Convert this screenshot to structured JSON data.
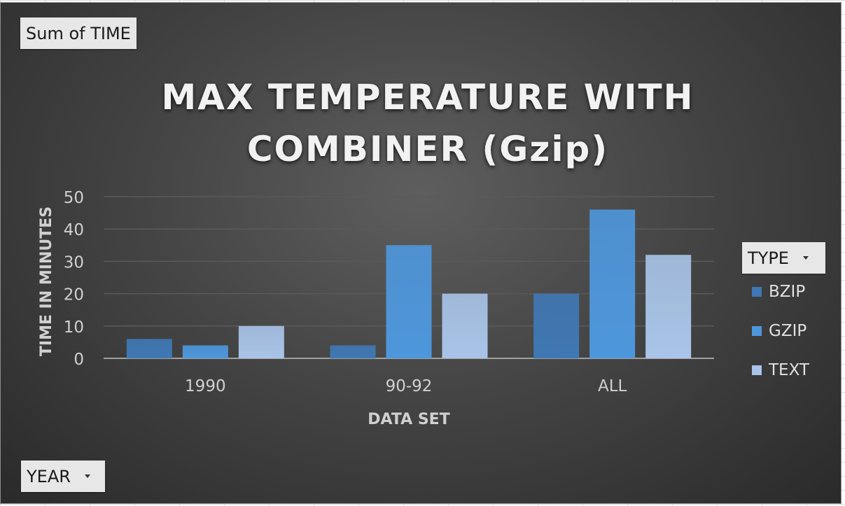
{
  "fields": {
    "values_field": "Sum of TIME",
    "legend_field": "TYPE",
    "axis_field": "YEAR"
  },
  "colors": {
    "BZIP": "#3f78b4",
    "GZIP": "#4e97dc",
    "TEXT": "#a9c4e8"
  },
  "chart_data": {
    "type": "bar",
    "title": "MAX TEMPERATURE WITH COMBINER (Gzip)",
    "title_lines": [
      "MAX TEMPERATURE WITH",
      "COMBINER (Gzip)"
    ],
    "xlabel": "DATA SET",
    "ylabel": "TIME IN MINUTES",
    "categories": [
      "1990",
      "90-92",
      "ALL"
    ],
    "ylim": [
      0,
      50
    ],
    "yticks": [
      0,
      10,
      20,
      30,
      40,
      50
    ],
    "grid": true,
    "legend_position": "right",
    "series": [
      {
        "name": "BZIP",
        "values": [
          6,
          4,
          20
        ]
      },
      {
        "name": "GZIP",
        "values": [
          4,
          35,
          46
        ]
      },
      {
        "name": "TEXT",
        "values": [
          10,
          20,
          32
        ]
      }
    ]
  }
}
